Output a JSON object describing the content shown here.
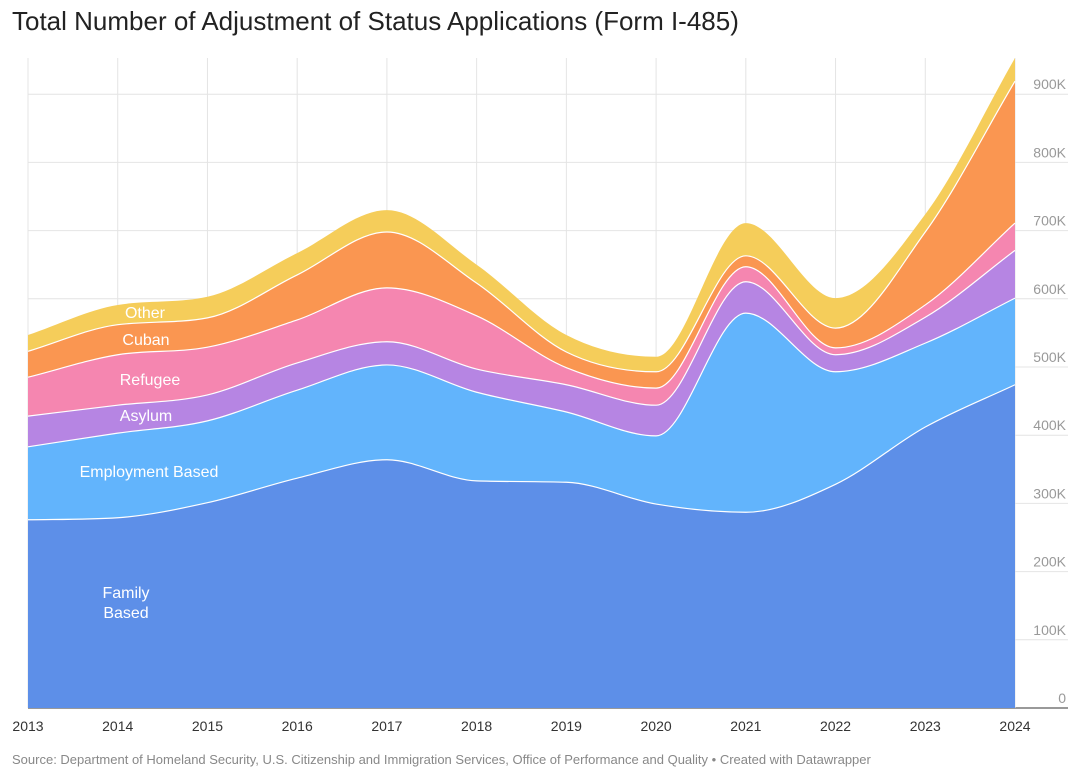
{
  "chart_data": {
    "type": "area",
    "stacked": true,
    "title": "Total Number of Adjustment of Status Applications (Form I-485)",
    "source": "Source: Department of Homeland Security, U.S. Citizenship and Immigration Services, Office of Performance and Quality • Created with Datawrapper",
    "x": [
      2013,
      2014,
      2015,
      2016,
      2017,
      2018,
      2019,
      2020,
      2021,
      2022,
      2023,
      2024
    ],
    "x_tick_labels": [
      "2013",
      "2014",
      "2015",
      "2016",
      "2017",
      "2018",
      "2019",
      "2020",
      "2021",
      "2022",
      "2023",
      "2024"
    ],
    "y_ticks": [
      0,
      100000,
      200000,
      300000,
      400000,
      500000,
      600000,
      700000,
      800000,
      900000
    ],
    "y_tick_labels": [
      "0",
      "100K",
      "200K",
      "300K",
      "400K",
      "500K",
      "600K",
      "700K",
      "800K",
      "900K"
    ],
    "ylim": [
      0,
      950000
    ],
    "y_axis_position": "right",
    "grid": true,
    "legend": "inline labels",
    "series": [
      {
        "name": "Family Based",
        "label_lines": [
          "Family",
          "Based"
        ],
        "color": "#5d8fe8",
        "values": [
          276000,
          279000,
          301000,
          337000,
          364000,
          333000,
          331000,
          299000,
          287000,
          328000,
          412000,
          474000
        ]
      },
      {
        "name": "Employment Based",
        "label_lines": [
          "Employment Based"
        ],
        "color": "#62b4fc",
        "values": [
          107000,
          124000,
          120000,
          129000,
          139000,
          130000,
          103000,
          100000,
          292000,
          165000,
          123000,
          127000
        ]
      },
      {
        "name": "Asylum",
        "label_lines": [
          "Asylum"
        ],
        "color": "#b685e3",
        "values": [
          45000,
          41000,
          38000,
          40000,
          34000,
          34000,
          40000,
          45000,
          46000,
          25000,
          38000,
          70000
        ]
      },
      {
        "name": "Refugee",
        "label_lines": [
          "Refugee"
        ],
        "color": "#f586b0",
        "values": [
          57000,
          74000,
          70000,
          63000,
          79000,
          78000,
          25000,
          25000,
          22000,
          10000,
          18000,
          40000
        ]
      },
      {
        "name": "Cuban",
        "label_lines": [
          "Cuban"
        ],
        "color": "#fa9651",
        "values": [
          38000,
          44000,
          43000,
          66000,
          82000,
          48000,
          23000,
          24000,
          16000,
          29000,
          107000,
          208000
        ]
      },
      {
        "name": "Other",
        "label_lines": [
          "Other"
        ],
        "color": "#f5cd5a",
        "values": [
          24000,
          29000,
          31000,
          32000,
          32000,
          27000,
          25000,
          22000,
          48000,
          44000,
          26000,
          34000
        ]
      }
    ]
  }
}
